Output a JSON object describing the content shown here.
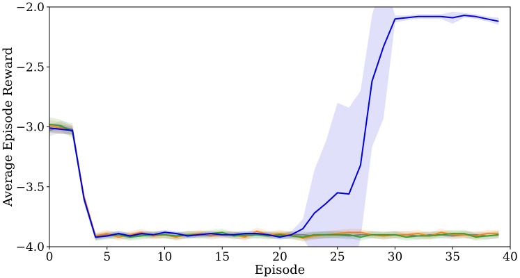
{
  "chart_data": {
    "type": "line",
    "title": "",
    "xlabel": "Episode",
    "ylabel": "Average Episode Reward",
    "xlim": [
      0,
      40
    ],
    "ylim": [
      -4.0,
      -2.0
    ],
    "x_ticks": [
      "0",
      "5",
      "10",
      "15",
      "20",
      "25",
      "30",
      "35",
      "40"
    ],
    "y_ticks": [
      "−2.0",
      "−2.5",
      "−3.0",
      "−3.5",
      "−4.0"
    ],
    "x_tick_values": [
      0,
      5,
      10,
      15,
      20,
      25,
      30,
      35,
      40
    ],
    "y_tick_values": [
      -2.0,
      -2.5,
      -3.0,
      -3.5,
      -4.0
    ],
    "grid": false,
    "legend": "none",
    "x": [
      0,
      1,
      2,
      3,
      4,
      5,
      6,
      7,
      8,
      9,
      10,
      11,
      12,
      13,
      14,
      15,
      16,
      17,
      18,
      19,
      20,
      21,
      22,
      23,
      24,
      25,
      26,
      27,
      28,
      29,
      30,
      31,
      32,
      33,
      34,
      35,
      36,
      37,
      38,
      39
    ],
    "series": [
      {
        "color": "#7f7f7f",
        "values": [
          -3.03,
          -3.0,
          -3.02,
          -3.6,
          -3.92,
          -3.9,
          -3.9,
          -3.91,
          -3.9,
          -3.9,
          -3.9,
          -3.91,
          -3.9,
          -3.9,
          -3.91,
          -3.9,
          -3.9,
          -3.91,
          -3.9,
          -3.9,
          -3.91,
          -3.9,
          -3.9,
          -3.91,
          -3.9,
          -3.9,
          -3.91,
          -3.9,
          -3.9,
          -3.91,
          -3.9,
          -3.9,
          -3.91,
          -3.9,
          -3.9,
          -3.91,
          -3.9,
          -3.9,
          -3.91,
          -3.9
        ],
        "band": [
          0.05,
          0.05,
          0.05,
          0.04,
          0.03,
          0.03,
          0.03,
          0.03,
          0.03,
          0.03,
          0.03,
          0.03,
          0.03,
          0.03,
          0.03,
          0.03,
          0.03,
          0.03,
          0.03,
          0.03,
          0.03,
          0.03,
          0.03,
          0.03,
          0.03,
          0.03,
          0.03,
          0.03,
          0.03,
          0.03,
          0.03,
          0.03,
          0.03,
          0.03,
          0.03,
          0.03,
          0.03,
          0.03,
          0.03,
          0.03
        ]
      },
      {
        "color": "#ff7f0e",
        "values": [
          -2.99,
          -3.01,
          -3.03,
          -3.58,
          -3.91,
          -3.89,
          -3.92,
          -3.9,
          -3.88,
          -3.91,
          -3.9,
          -3.92,
          -3.9,
          -3.89,
          -3.9,
          -3.9,
          -3.9,
          -3.92,
          -3.87,
          -3.9,
          -3.89,
          -3.9,
          -3.93,
          -3.91,
          -3.9,
          -3.89,
          -3.88,
          -3.88,
          -3.9,
          -3.91,
          -3.9,
          -3.9,
          -3.89,
          -3.91,
          -3.88,
          -3.9,
          -3.9,
          -3.91,
          -3.89,
          -3.89
        ],
        "band": [
          0.05,
          0.05,
          0.04,
          0.04,
          0.03,
          0.03,
          0.03,
          0.03,
          0.03,
          0.03,
          0.03,
          0.03,
          0.03,
          0.03,
          0.03,
          0.03,
          0.03,
          0.03,
          0.03,
          0.03,
          0.03,
          0.03,
          0.03,
          0.03,
          0.03,
          0.03,
          0.03,
          0.03,
          0.03,
          0.03,
          0.03,
          0.03,
          0.03,
          0.03,
          0.03,
          0.03,
          0.03,
          0.03,
          0.03,
          0.03
        ]
      },
      {
        "color": "#2ca02c",
        "values": [
          -2.98,
          -2.99,
          -3.04,
          -3.6,
          -3.92,
          -3.91,
          -3.9,
          -3.92,
          -3.91,
          -3.9,
          -3.9,
          -3.91,
          -3.9,
          -3.9,
          -3.89,
          -3.88,
          -3.91,
          -3.9,
          -3.9,
          -3.91,
          -3.9,
          -3.91,
          -3.92,
          -3.9,
          -3.9,
          -3.9,
          -3.9,
          -3.92,
          -3.9,
          -3.9,
          -3.9,
          -3.92,
          -3.91,
          -3.91,
          -3.9,
          -3.89,
          -3.89,
          -3.92,
          -3.91,
          -3.9
        ],
        "band": [
          0.06,
          0.05,
          0.05,
          0.04,
          0.03,
          0.03,
          0.03,
          0.03,
          0.03,
          0.03,
          0.03,
          0.03,
          0.03,
          0.03,
          0.03,
          0.03,
          0.03,
          0.03,
          0.03,
          0.03,
          0.03,
          0.03,
          0.03,
          0.03,
          0.03,
          0.03,
          0.03,
          0.03,
          0.03,
          0.03,
          0.03,
          0.03,
          0.03,
          0.03,
          0.03,
          0.03,
          0.03,
          0.03,
          0.03,
          0.03
        ]
      },
      {
        "color": "#0000e0",
        "values": [
          -3.01,
          -3.02,
          -3.03,
          -3.6,
          -3.92,
          -3.91,
          -3.89,
          -3.91,
          -3.89,
          -3.9,
          -3.88,
          -3.89,
          -3.91,
          -3.9,
          -3.89,
          -3.9,
          -3.9,
          -3.89,
          -3.89,
          -3.9,
          -3.92,
          -3.9,
          -3.85,
          -3.72,
          -3.64,
          -3.55,
          -3.56,
          -3.32,
          -2.62,
          -2.33,
          -2.1,
          -2.09,
          -2.08,
          -2.08,
          -2.08,
          -2.09,
          -2.07,
          -2.08,
          -2.1,
          -2.12
        ],
        "band": [
          0.04,
          0.04,
          0.03,
          0.03,
          0.02,
          0.02,
          0.02,
          0.02,
          0.02,
          0.02,
          0.02,
          0.02,
          0.02,
          0.02,
          0.02,
          0.02,
          0.02,
          0.02,
          0.02,
          0.02,
          0.02,
          0.03,
          0.08,
          0.36,
          0.52,
          0.75,
          0.72,
          0.62,
          0.55,
          0.6,
          0.03,
          0.02,
          0.02,
          0.02,
          0.02,
          0.05,
          0.02,
          0.02,
          0.02,
          0.03
        ]
      }
    ]
  }
}
